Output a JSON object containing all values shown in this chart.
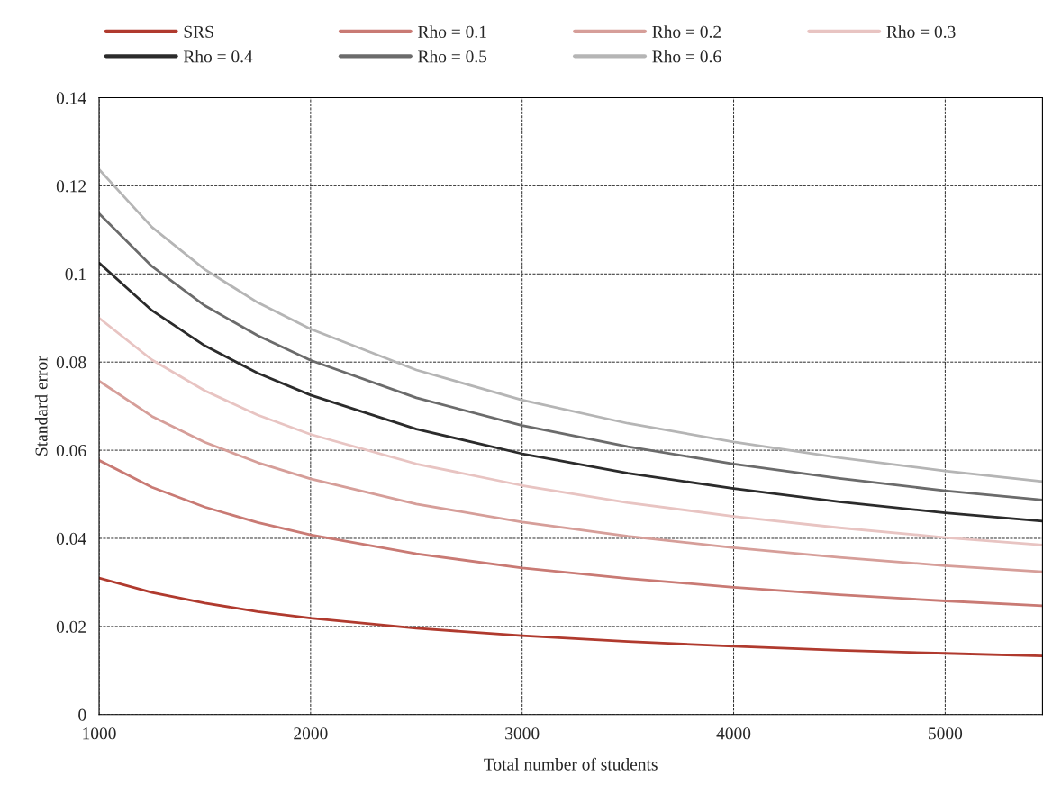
{
  "chart_data": {
    "type": "line",
    "xlabel": "Total number of students",
    "ylabel": "Standard error",
    "x": [
      1000,
      1250,
      1500,
      1750,
      2000,
      2500,
      3000,
      3500,
      4000,
      4500,
      5000,
      5460
    ],
    "series": [
      {
        "name": "SRS",
        "color": "#b03a2e",
        "values": [
          0.031,
          0.0277,
          0.0253,
          0.0234,
          0.0219,
          0.0196,
          0.0179,
          0.0166,
          0.0155,
          0.0146,
          0.0139,
          0.0133
        ]
      },
      {
        "name": "Rho = 0.1",
        "color": "#c97a74",
        "values": [
          0.0577,
          0.0516,
          0.0471,
          0.0436,
          0.0408,
          0.0365,
          0.0333,
          0.0309,
          0.0289,
          0.0272,
          0.0258,
          0.0247
        ]
      },
      {
        "name": "Rho = 0.2",
        "color": "#d69e99",
        "values": [
          0.0757,
          0.0677,
          0.0618,
          0.0572,
          0.0535,
          0.0478,
          0.0437,
          0.0405,
          0.0379,
          0.0357,
          0.0338,
          0.0324
        ]
      },
      {
        "name": "Rho = 0.3",
        "color": "#e8c4c2",
        "values": [
          0.09,
          0.0805,
          0.0735,
          0.068,
          0.0636,
          0.0569,
          0.052,
          0.0481,
          0.045,
          0.0424,
          0.0402,
          0.0385
        ]
      },
      {
        "name": "Rho = 0.4",
        "color": "#2b2b2b",
        "values": [
          0.1025,
          0.0917,
          0.0837,
          0.0775,
          0.0725,
          0.0648,
          0.0592,
          0.0548,
          0.0513,
          0.0483,
          0.0458,
          0.0439
        ]
      },
      {
        "name": "Rho = 0.5",
        "color": "#6b6b6b",
        "values": [
          0.1137,
          0.1017,
          0.0928,
          0.086,
          0.0804,
          0.0719,
          0.0656,
          0.0608,
          0.0569,
          0.0536,
          0.0508,
          0.0487
        ]
      },
      {
        "name": "Rho = 0.6",
        "color": "#b5b5b5",
        "values": [
          0.1237,
          0.1106,
          0.101,
          0.0935,
          0.0875,
          0.0782,
          0.0714,
          0.0661,
          0.0619,
          0.0583,
          0.0553,
          0.0529
        ]
      }
    ],
    "xlim": [
      1000,
      5460
    ],
    "xticks": [
      1000,
      2000,
      3000,
      4000,
      5000
    ],
    "ylim": [
      0,
      0.14
    ],
    "yticks": [
      0,
      0.02,
      0.04,
      0.06,
      0.08,
      0.1,
      0.12,
      0.14
    ],
    "grid": true,
    "legend": "top"
  }
}
